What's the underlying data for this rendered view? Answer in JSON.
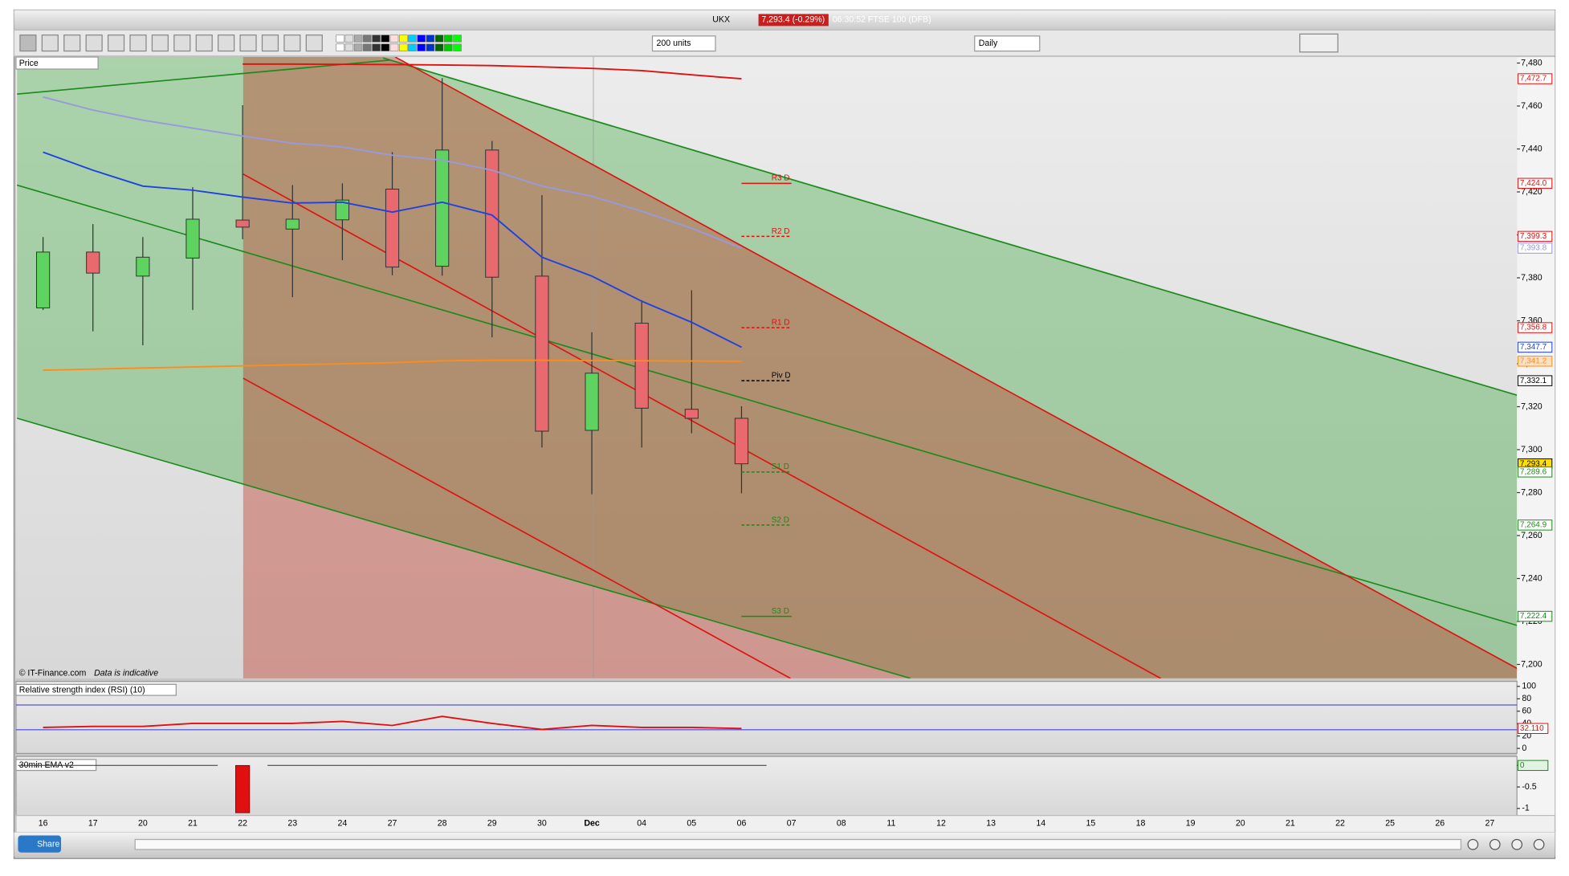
{
  "title_bar": {
    "symbol": "UKX",
    "quote": "7,293.4 (-0.29%)",
    "info": "06:30:52 FTSE 100 (DFB)"
  },
  "toolbar": {
    "units": "200 units",
    "period": "Daily"
  },
  "price_panel": {
    "label": "Price",
    "footer_source": "© IT-Finance.com",
    "footer_note": "Data is indicative"
  },
  "bottom_bar": {
    "share": "Share"
  },
  "chart_data": [
    {
      "type": "candlestick",
      "categories": [
        "16",
        "17",
        "20",
        "21",
        "22",
        "23",
        "24",
        "27",
        "28",
        "29",
        "30",
        "Dec",
        "04",
        "05",
        "06",
        "07",
        "08",
        "11",
        "12",
        "13",
        "14",
        "15",
        "18",
        "19",
        "20",
        "21",
        "22",
        "25",
        "26",
        "27"
      ],
      "open": [
        7366,
        7392,
        7380.8,
        7389.2,
        7406.9,
        7402.7,
        7407,
        7421.3,
        7385.4,
        7439.5,
        7380.8,
        7309,
        7358.9,
        7318.8,
        7314.6,
        null,
        null,
        null,
        null,
        null,
        null,
        null,
        null,
        null,
        null,
        null,
        null,
        null,
        null,
        null
      ],
      "high": [
        7399,
        7405,
        7399,
        7422.2,
        7460.4,
        7423.2,
        7424,
        7438.5,
        7473,
        7443.7,
        7418.5,
        7354.7,
        7369.6,
        7374.2,
        7320.2,
        null,
        null,
        null,
        null,
        null,
        null,
        null,
        null,
        null,
        null,
        null,
        null,
        null,
        null,
        null
      ],
      "low": [
        7365,
        7355.1,
        7348.6,
        7365,
        7398,
        7371,
        7388.2,
        7381.2,
        7381,
        7352.3,
        7301,
        7279.2,
        7301,
        7307.6,
        7279.7,
        null,
        null,
        null,
        null,
        null,
        null,
        null,
        null,
        null,
        null,
        null,
        null,
        null,
        null,
        null
      ],
      "close": [
        7392,
        7382.2,
        7389.6,
        7407.3,
        7403.6,
        7407.3,
        7416.2,
        7385,
        7439.5,
        7380.3,
        7308.6,
        7335.6,
        7319.3,
        7314.6,
        7293.4,
        null,
        null,
        null,
        null,
        null,
        null,
        null,
        null,
        null,
        null,
        null,
        null,
        null,
        null,
        null
      ],
      "up_color": "#5fd35f",
      "down_color": "#e8696e",
      "lines": [
        {
          "color": "#9999dd",
          "values": [
            7464.2,
            7458.1,
            7453.4,
            7449.7,
            7446,
            7442.7,
            7440.9,
            7437.1,
            7434.8,
            7430.1,
            7422.7,
            7418,
            7411,
            7403.1,
            7393.8,
            null,
            null,
            null,
            null,
            null,
            null,
            null,
            null,
            null,
            null,
            null,
            null,
            null,
            null,
            null
          ]
        },
        {
          "color": "#ff8c1a",
          "values": [
            7337,
            7337.5,
            7338,
            7338.5,
            7339,
            7339.5,
            7340,
            7340.5,
            7341.4,
            7341.6,
            7341.6,
            7341.5,
            7341.4,
            7341.3,
            7341.2,
            null,
            null,
            null,
            null,
            null,
            null,
            null,
            null,
            null,
            null,
            null,
            null,
            null,
            null,
            null
          ]
        },
        {
          "color": "#2040e0",
          "values": [
            7438.5,
            7430.1,
            7422.7,
            7420.8,
            7417.6,
            7414.8,
            7415.2,
            7410.6,
            7415.2,
            7409.2,
            7389.6,
            7380.8,
            7369.1,
            7359.3,
            7347.7,
            null,
            null,
            null,
            null,
            null,
            null,
            null,
            null,
            null,
            null,
            null,
            null,
            null,
            null,
            null
          ]
        },
        {
          "color": "#e01010",
          "values": [
            null,
            null,
            null,
            null,
            7479.5,
            7479.5,
            7479.4,
            7479.3,
            7479.1,
            7478.8,
            7478.2,
            7477.5,
            7476.5,
            7474.5,
            7472.7,
            null,
            null,
            null,
            null,
            null,
            null,
            null,
            null,
            null,
            null,
            null,
            null,
            null,
            null,
            null
          ]
        }
      ],
      "pivots": [
        {
          "label": "R3 D",
          "value": 7424.0,
          "color": "#e01010",
          "style": "solid"
        },
        {
          "label": "R2 D",
          "value": 7399.3,
          "color": "#e01010",
          "style": "dashed"
        },
        {
          "label": "R1 D",
          "value": 7356.8,
          "color": "#e01010",
          "style": "dashed"
        },
        {
          "label": "Piv D",
          "value": 7332.1,
          "color": "#000000",
          "style": "dashed"
        },
        {
          "label": "S1 D",
          "value": 7289.6,
          "color": "#1a8a1a",
          "style": "dashed"
        },
        {
          "label": "S2 D",
          "value": 7264.9,
          "color": "#1a8a1a",
          "style": "dashed"
        },
        {
          "label": "S3 D",
          "value": 7222.4,
          "color": "#1a8a1a",
          "style": "solid"
        }
      ],
      "price_tags": [
        {
          "value": 7472.7,
          "label": "7,472.7",
          "color": "#e01010",
          "fill": "#ffffff"
        },
        {
          "value": 7424.0,
          "label": "7,424.0",
          "color": "#e01010",
          "fill": "#ffffff"
        },
        {
          "value": 7399.3,
          "label": "7,399.3",
          "color": "#e01010",
          "fill": "#ffffff"
        },
        {
          "value": 7393.8,
          "label": "7,393.8",
          "color": "#9999dd",
          "fill": "#ffffff"
        },
        {
          "value": 7356.8,
          "label": "7,356.8",
          "color": "#e01010",
          "fill": "#ffffff"
        },
        {
          "value": 7347.7,
          "label": "7,347.7",
          "color": "#2040e0",
          "fill": "#ffffff"
        },
        {
          "value": 7341.2,
          "label": "7,341.2",
          "color": "#ff8c1a",
          "fill": "#ffe0c0"
        },
        {
          "value": 7332.1,
          "label": "7,332.1",
          "color": "#000000",
          "fill": "#ffffff"
        },
        {
          "value": 7293.4,
          "label": "7,293.4",
          "color": "#000000",
          "fill": "#ffe000"
        },
        {
          "value": 7289.6,
          "label": "7,289.6",
          "color": "#1a8a1a",
          "fill": "#ffffff"
        },
        {
          "value": 7264.9,
          "label": "7,264.9",
          "color": "#1a8a1a",
          "fill": "#ffffff"
        },
        {
          "value": 7222.4,
          "label": "7,222.4",
          "color": "#1a8a1a",
          "fill": "#ffffff"
        }
      ],
      "ylim": [
        7193.5,
        7482.8
      ],
      "yticks": [
        {
          "value": 7200,
          "label": "7,200"
        },
        {
          "value": 7220,
          "label": "7,220"
        },
        {
          "value": 7240,
          "label": "7,240"
        },
        {
          "value": 7260,
          "label": "7,260"
        },
        {
          "value": 7280,
          "label": "7,280"
        },
        {
          "value": 7300,
          "label": "7,300"
        },
        {
          "value": 7320,
          "label": "7,320"
        },
        {
          "value": 7340,
          "label": "7,340"
        },
        {
          "value": 7360,
          "label": "7,360"
        },
        {
          "value": 7380,
          "label": "7,380"
        },
        {
          "value": 7400,
          "label": "7,400"
        },
        {
          "value": 7420,
          "label": "7,420"
        },
        {
          "value": 7440,
          "label": "7,440"
        },
        {
          "value": 7460,
          "label": "7,460"
        },
        {
          "value": 7480,
          "label": "7,480"
        }
      ]
    },
    {
      "type": "line",
      "title": "Relative strength index (RSI) (10)",
      "color": "#e01010",
      "values": [
        33.9,
        35.5,
        35.5,
        40.3,
        40.3,
        40.3,
        43.5,
        37,
        51.6,
        40.3,
        30.6,
        37,
        33.9,
        33.9,
        32.11,
        null,
        null,
        null,
        null,
        null,
        null,
        null,
        null,
        null,
        null,
        null,
        null,
        null,
        null,
        null
      ],
      "last_label": {
        "value": 32.11,
        "label": "32.110"
      },
      "levels": [
        30,
        70
      ],
      "level_color": "#3030e0",
      "ylim": [
        -6.5,
        104.8
      ],
      "yticks": [
        0,
        20,
        40,
        60,
        80,
        100
      ]
    },
    {
      "type": "bar",
      "title": "30min EMA v2",
      "color": "#e01010",
      "values": [
        0,
        0,
        0,
        0,
        -1.1,
        0,
        0,
        0,
        0,
        0,
        0,
        0,
        0,
        0,
        0,
        null,
        null,
        null,
        null,
        null,
        null,
        null,
        null,
        null,
        null,
        null,
        null,
        null,
        null,
        null
      ],
      "last_label": {
        "value": 0,
        "label": "0"
      },
      "ylim": [
        -1.163,
        0.163
      ],
      "yticks": [
        -1,
        -0.5,
        0
      ]
    }
  ]
}
